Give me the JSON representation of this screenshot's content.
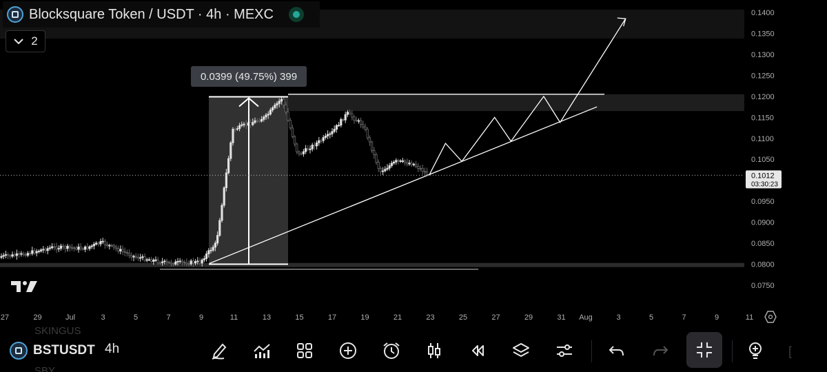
{
  "header": {
    "title": "Blocksquare Token / USDT · 4h · MEXC",
    "collapse_count": "2",
    "icons": [
      "coin-logo-icon",
      "live-status-icon",
      "chevron-down-icon"
    ]
  },
  "measure": {
    "label": "0.0399 (49.75%) 399"
  },
  "price_axis": {
    "ticks": [
      "0.1400",
      "0.1350",
      "0.1300",
      "0.1250",
      "0.1200",
      "0.1150",
      "0.1100",
      "0.1050",
      "0.1000",
      "0.0950",
      "0.0900",
      "0.0850",
      "0.0800",
      "0.0750"
    ],
    "current_price": "0.1012",
    "countdown": "03:30:23"
  },
  "time_axis": {
    "ticks": [
      "27",
      "29",
      "Jul",
      "3",
      "5",
      "7",
      "9",
      "11",
      "13",
      "15",
      "17",
      "19",
      "21",
      "23",
      "25",
      "27",
      "29",
      "31",
      "Aug",
      "3",
      "5",
      "7",
      "9",
      "11"
    ]
  },
  "chart_data": {
    "type": "candlestick",
    "symbol": "BSTUSDT",
    "interval": "4h",
    "exchange": "MEXC",
    "ylim": [
      0.0725,
      0.1415
    ],
    "current_price": 0.1012,
    "close_path": [
      {
        "date": "Jun 26",
        "close": 0.0816
      },
      {
        "date": "Jun 28",
        "close": 0.0822
      },
      {
        "date": "Jun 30",
        "close": 0.084
      },
      {
        "date": "Jul 2",
        "close": 0.0838
      },
      {
        "date": "Jul 3",
        "close": 0.0852
      },
      {
        "date": "Jul 5",
        "close": 0.0818
      },
      {
        "date": "Jul 7",
        "close": 0.0803
      },
      {
        "date": "Jul 9",
        "close": 0.0805
      },
      {
        "date": "Jul 10",
        "close": 0.085
      },
      {
        "date": "Jul 11",
        "close": 0.112
      },
      {
        "date": "Jul 12",
        "close": 0.1135
      },
      {
        "date": "Jul 13",
        "close": 0.115
      },
      {
        "date": "Jul 14",
        "close": 0.1195
      },
      {
        "date": "Jul 15",
        "close": 0.106
      },
      {
        "date": "Jul 16",
        "close": 0.1085
      },
      {
        "date": "Jul 17",
        "close": 0.111
      },
      {
        "date": "Jul 18",
        "close": 0.116
      },
      {
        "date": "Jul 19",
        "close": 0.113
      },
      {
        "date": "Jul 20",
        "close": 0.102
      },
      {
        "date": "Jul 21",
        "close": 0.1045
      },
      {
        "date": "Jul 22",
        "close": 0.104
      },
      {
        "date": "Jul 23",
        "close": 0.1012
      }
    ],
    "measure": {
      "from": 0.08,
      "to": 0.1199,
      "change": 0.0399,
      "percent": 49.75,
      "bars": 399
    },
    "resistance": 0.1205,
    "support_trendline": [
      {
        "date": "Jul 9",
        "price": 0.0802
      },
      {
        "date": "Aug 2",
        "price": 0.1175
      }
    ],
    "projection": [
      {
        "date": "Jul 23",
        "price": 0.1012
      },
      {
        "date": "Jul 24",
        "price": 0.1088
      },
      {
        "date": "Jul 25",
        "price": 0.1045
      },
      {
        "date": "Jul 27",
        "price": 0.115
      },
      {
        "date": "Jul 28",
        "price": 0.1093
      },
      {
        "date": "Jul 30",
        "price": 0.12
      },
      {
        "date": "Jul 31",
        "price": 0.1138
      },
      {
        "date": "Aug 4",
        "price": 0.1385
      }
    ]
  },
  "toolbar": {
    "symbol": "BSTUSDT",
    "interval": "4h",
    "faded_top": "SKINGUS",
    "faded_bottom": "SBY",
    "buttons": [
      "pencil-icon",
      "indicators-icon",
      "grid-icon",
      "add-icon",
      "alarm-icon",
      "candles-icon",
      "replay-icon",
      "layers-icon",
      "settings-sliders-icon",
      "undo-icon",
      "redo-icon",
      "fullscreen-exit-icon",
      "idea-icon"
    ]
  }
}
